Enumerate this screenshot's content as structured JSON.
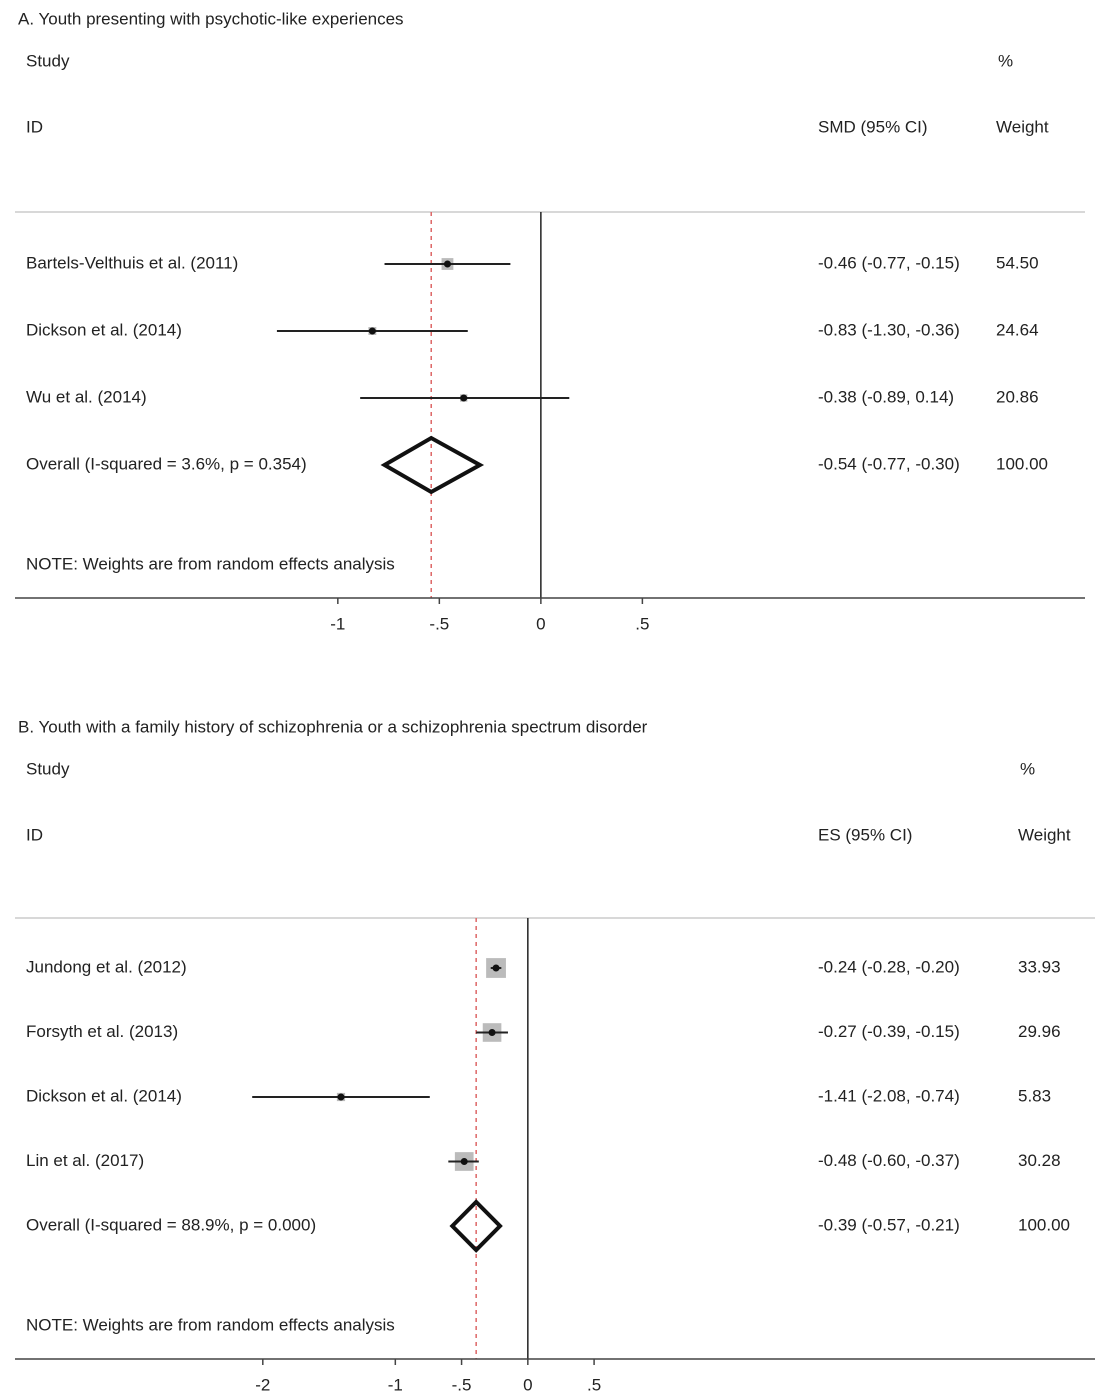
{
  "chart_data": [
    {
      "type": "forest",
      "title": "A. Youth presenting with psychotic-like experiences",
      "study_header": [
        "Study",
        "ID"
      ],
      "effect_header": "SMD (95% CI)",
      "weight_header": [
        "%",
        "Weight"
      ],
      "categories": [
        "Bartels-Velthuis et al. (2011)",
        "Dickson et al. (2014)",
        "Wu et al. (2014)"
      ],
      "values": [
        -0.46,
        -0.83,
        -0.38
      ],
      "lower": [
        -0.77,
        -1.3,
        -0.89
      ],
      "upper": [
        -0.15,
        -0.36,
        0.14
      ],
      "value_labels": [
        "-0.46 (-0.77, -0.15)",
        "-0.83 (-1.30, -0.36)",
        "-0.38 (-0.89, 0.14)"
      ],
      "weights": [
        54.5,
        24.64,
        20.86
      ],
      "weight_labels": [
        "54.50",
        "24.64",
        "20.86"
      ],
      "overall": {
        "label": "Overall  (I-squared = 3.6%, p = 0.354)",
        "value": -0.54,
        "lower": -0.77,
        "upper": -0.3,
        "value_label": "-0.54 (-0.77, -0.30)",
        "weight": 100,
        "weight_label": "100.00"
      },
      "note": "NOTE: Weights are from random effects analysis",
      "xlim": [
        -2.59,
        2.68
      ],
      "xticks": [
        -1,
        {
          "value": -0.5,
          "label": "-.5"
        },
        0,
        {
          "value": 0.5,
          "label": ".5"
        }
      ]
    },
    {
      "type": "forest",
      "title": "B. Youth with a family history of schizophrenia or a schizophrenia spectrum disorder",
      "study_header": [
        "Study",
        "ID"
      ],
      "effect_header": "ES (95% CI)",
      "weight_header": [
        "%",
        "Weight"
      ],
      "categories": [
        "Jundong et al. (2012)",
        "Forsyth et al. (2013)",
        "Dickson et al. (2014)",
        "Lin et al. (2017)"
      ],
      "values": [
        -0.24,
        -0.27,
        -1.41,
        -0.48
      ],
      "lower": [
        -0.28,
        -0.39,
        -2.08,
        -0.6
      ],
      "upper": [
        -0.2,
        -0.15,
        -0.74,
        -0.37
      ],
      "value_labels": [
        "-0.24 (-0.28, -0.20)",
        "-0.27 (-0.39, -0.15)",
        "-1.41 (-2.08, -0.74)",
        "-0.48 (-0.60, -0.37)"
      ],
      "weights": [
        33.93,
        29.96,
        5.83,
        30.28
      ],
      "weight_labels": [
        "33.93",
        "29.96",
        "5.83",
        "30.28"
      ],
      "overall": {
        "label": "Overall  (I-squared = 88.9%, p = 0.000)",
        "value": -0.39,
        "lower": -0.57,
        "upper": -0.21,
        "value_label": "-0.39 (-0.57, -0.21)",
        "weight": 100,
        "weight_label": "100.00"
      },
      "note": "NOTE: Weights are from random effects analysis",
      "xlim": [
        -3.87,
        4.28
      ],
      "xticks": [
        -2,
        -1,
        {
          "value": -0.5,
          "label": "-.5"
        },
        0,
        {
          "value": 0.5,
          "label": ".5"
        }
      ]
    }
  ]
}
